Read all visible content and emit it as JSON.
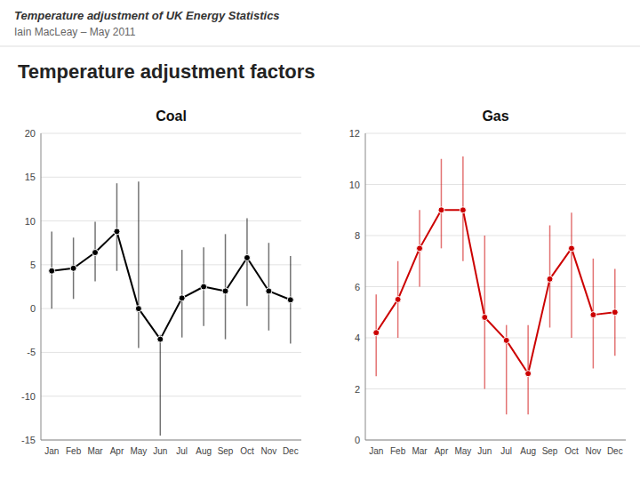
{
  "title": "Temperature adjustment factors",
  "annotations": [
    "Temperature adjustment of UK Energy Statistics",
    "Iain MacLeay – May 2011"
  ],
  "chart_data": [
    {
      "type": "line",
      "title": "Coal",
      "categories": [
        "Jan",
        "Feb",
        "Mar",
        "Apr",
        "May",
        "Jun",
        "Jul",
        "Aug",
        "Sep",
        "Oct",
        "Nov",
        "Dec"
      ],
      "series": [
        {
          "color": "#000000",
          "marker": "circle",
          "values": [
            4.3,
            4.6,
            6.4,
            8.8,
            0.0,
            -3.5,
            1.2,
            2.5,
            2.0,
            5.8,
            2.0,
            1.0
          ],
          "error_low": [
            4.3,
            3.5,
            3.3,
            4.5,
            4.5,
            11.0,
            4.5,
            4.5,
            5.5,
            5.5,
            4.5,
            5.0
          ],
          "error_high": [
            4.5,
            3.5,
            3.5,
            5.5,
            14.5,
            0.5,
            5.5,
            4.5,
            6.5,
            4.5,
            5.5,
            5.0
          ]
        }
      ],
      "ylim": [
        -15,
        20
      ],
      "yticks": [
        -15,
        -10,
        -5,
        0,
        5,
        10,
        15,
        20
      ],
      "grid": true
    },
    {
      "type": "line",
      "title": "Gas",
      "categories": [
        "Jan",
        "Feb",
        "Mar",
        "Apr",
        "May",
        "Jun",
        "Jul",
        "Aug",
        "Sep",
        "Oct",
        "Nov",
        "Dec"
      ],
      "series": [
        {
          "color": "#cc0000",
          "marker": "circle",
          "values": [
            4.2,
            5.5,
            7.5,
            9.0,
            9.0,
            4.8,
            3.9,
            2.6,
            6.3,
            7.5,
            4.9,
            5.0
          ],
          "error_low": [
            1.7,
            1.5,
            1.5,
            1.5,
            2.0,
            2.8,
            2.9,
            1.6,
            1.9,
            3.5,
            2.1,
            1.7
          ],
          "error_high": [
            1.5,
            1.5,
            1.5,
            2.0,
            2.1,
            3.2,
            0.6,
            1.9,
            2.1,
            1.4,
            2.2,
            1.7
          ]
        }
      ],
      "ylim": [
        0,
        12
      ],
      "yticks": [
        0,
        2,
        4,
        6,
        8,
        10,
        12
      ],
      "grid": true
    }
  ]
}
